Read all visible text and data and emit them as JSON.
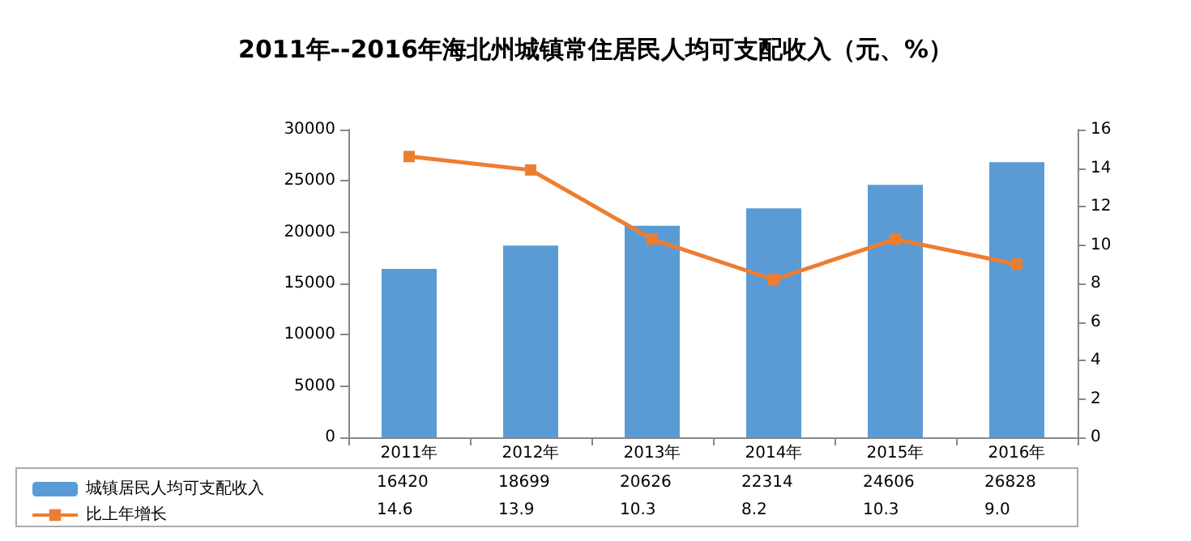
{
  "chart_data": {
    "type": "bar",
    "title": "2011年--2016年海北州城镇常住居民人均可支配收入（元、%）",
    "categories": [
      "2011年",
      "2012年",
      "2013年",
      "2014年",
      "2015年",
      "2016年"
    ],
    "series": [
      {
        "name": "城镇居民人均可支配收入",
        "color": "#5b9bd5",
        "values": [
          16420,
          18699,
          20626,
          22314,
          24606,
          26828
        ],
        "value_labels": [
          "16420",
          "18699",
          "20626",
          "22314",
          "24606",
          "26828"
        ]
      },
      {
        "name": "比上年增长",
        "type": "line",
        "axis": "y2",
        "color": "#ed7d31",
        "marker": "square",
        "values": [
          14.6,
          13.9,
          10.3,
          8.2,
          10.3,
          9.0
        ],
        "value_labels": [
          "14.6",
          "13.9",
          "10.3",
          "8.2",
          "10.3",
          "9.0"
        ]
      }
    ],
    "ylim": [
      0,
      30000
    ],
    "yticks": [
      0,
      5000,
      10000,
      15000,
      20000,
      25000,
      30000
    ],
    "y2lim": [
      0,
      16
    ],
    "y2ticks": [
      0,
      2,
      4,
      6,
      8,
      10,
      12,
      14,
      16
    ],
    "grid": false,
    "legend": "bottom left"
  }
}
